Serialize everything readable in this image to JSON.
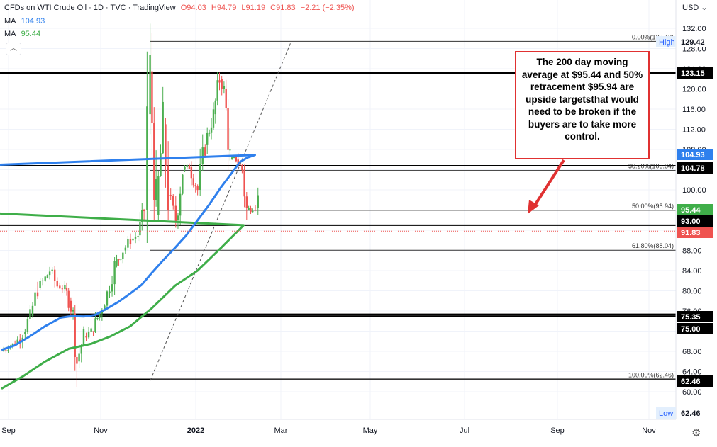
{
  "header": {
    "symbol_title": "CFDs on WTI Crude Oil · 1D · TVC · TradingView",
    "open": "O94.03",
    "high": "H94.79",
    "low": "L91.19",
    "close": "C91.83",
    "change": "−2.21 (−2.35%)",
    "ma1_label": "MA",
    "ma1_value": "104.93",
    "ma2_label": "MA",
    "ma2_value": "95.44",
    "currency": "USD"
  },
  "annotation": {
    "text": "The 200 day moving average at $95.44 and 50% retracement $95.94 are upside targetsthat would need to be broken if the buyers are to take more control."
  },
  "colors": {
    "up": "#26a69a",
    "up_fill": "#4caf50",
    "down": "#ef5350",
    "ma100": "#2f80ed",
    "ma200": "#3fae49",
    "annotation": "#e03131",
    "black_line": "#000000"
  },
  "chart_data": {
    "type": "line",
    "title": "CFDs on WTI Crude Oil · 1D · TVC · TradingView",
    "y_axis": {
      "ticks": [
        "132.00",
        "128.00",
        "124.00",
        "120.00",
        "116.00",
        "112.00",
        "108.00",
        "104.00",
        "100.00",
        "96.00",
        "92.00",
        "88.00",
        "84.00",
        "80.00",
        "76.00",
        "72.00",
        "68.00",
        "64.00",
        "60.00",
        "56.00"
      ],
      "ylim": [
        54,
        134
      ],
      "position": "right"
    },
    "x_axis": {
      "ticks": [
        "Sep",
        "Nov",
        "2022",
        "Mar",
        "May",
        "Jul",
        "Sep",
        "Nov"
      ]
    },
    "price_labels": [
      {
        "label": "High",
        "value": 129.42
      },
      {
        "label": "Low",
        "value": 62.46
      }
    ],
    "axis_price_tags": [
      {
        "text": "129.42",
        "kind": "high"
      },
      {
        "text": "123.15",
        "kind": "level"
      },
      {
        "text": "104.93",
        "kind": "ma100"
      },
      {
        "text": "104.78",
        "kind": "level"
      },
      {
        "text": "95.44",
        "kind": "ma200"
      },
      {
        "text": "93.00",
        "kind": "level"
      },
      {
        "text": "91.83",
        "kind": "last"
      },
      {
        "text": "75.35",
        "kind": "level"
      },
      {
        "text": "75.00",
        "kind": "level"
      },
      {
        "text": "62.46",
        "kind": "level"
      },
      {
        "text": "62.46",
        "kind": "low"
      }
    ],
    "horizontal_levels": [
      123.15,
      104.78,
      93.0,
      75.35,
      75.0,
      62.46
    ],
    "fibonacci": [
      {
        "label": "0.00%(129.42)",
        "value": 129.42
      },
      {
        "label": "38.20%(103.84)",
        "value": 103.84
      },
      {
        "label": "50.00%(95.94)",
        "value": 95.94
      },
      {
        "label": "61.80%(88.04)",
        "value": 88.04
      },
      {
        "label": "100.00%(62.46)",
        "value": 62.46
      }
    ],
    "last_price": 91.83,
    "series": [
      {
        "name": "MA 104.93",
        "kind": "ma100",
        "x": [
          "Aug-23",
          "Sep-10",
          "Sep-30",
          "Oct-20",
          "Nov-10",
          "Nov-25",
          "Dec-10",
          "Dec-25",
          "Jan-10",
          "Jan-25",
          "Feb-10",
          "Feb-25",
          "Mar-10",
          "Mar-25",
          "Apr-10",
          "Apr-25",
          "May-10",
          "May-25",
          "Jun-10",
          "Jun-25",
          "Jul-05",
          "Jul-15",
          "Jul-25",
          "Aug-05"
        ],
        "values": [
          68.3,
          69.2,
          71.0,
          73.0,
          74.7,
          75.0,
          74.9,
          75.2,
          76.5,
          77.8,
          79.5,
          81.2,
          83.5,
          86.0,
          88.5,
          91.0,
          94.0,
          97.0,
          100.5,
          103.5,
          105.5,
          106.4,
          106.9,
          104.9
        ]
      },
      {
        "name": "MA 95.44",
        "kind": "ma200",
        "x": [
          "Aug-23",
          "Sep-20",
          "Oct-20",
          "Nov-20",
          "Dec-20",
          "Jan-15",
          "Feb-10",
          "Mar-10",
          "Apr-10",
          "May-10",
          "Jun-10",
          "Jul-10",
          "Aug-05"
        ],
        "values": [
          60.6,
          63.0,
          66.0,
          68.5,
          69.5,
          71.0,
          73.0,
          76.5,
          81.0,
          84.0,
          88.5,
          93.0,
          95.44
        ]
      },
      {
        "name": "WTI close",
        "kind": "price",
        "x": [
          "Aug-23",
          "Sep-01",
          "Sep-10",
          "Sep-20",
          "Sep-30",
          "Oct-10",
          "Oct-20",
          "Oct-26",
          "Nov-05",
          "Nov-15",
          "Nov-20",
          "Nov-26",
          "Dec-01",
          "Dec-10",
          "Dec-20",
          "Dec-31",
          "Jan-10",
          "Jan-20",
          "Jan-31",
          "Feb-10",
          "Feb-20",
          "Feb-28",
          "Mar-04",
          "Mar-08",
          "Mar-16",
          "Mar-25",
          "Apr-01",
          "Apr-11",
          "Apr-20",
          "Apr-29",
          "May-10",
          "May-20",
          "May-31",
          "Jun-08",
          "Jun-14",
          "Jun-22",
          "Jun-30",
          "Jul-08",
          "Jul-14",
          "Jul-22",
          "Jul-29",
          "Aug-05"
        ],
        "values": [
          68.0,
          69.0,
          69.5,
          71.5,
          75.0,
          80.5,
          82.5,
          84.0,
          81.0,
          80.5,
          78.0,
          75.5,
          66.0,
          71.0,
          72.0,
          75.5,
          79.5,
          85.0,
          88.0,
          90.0,
          91.0,
          96.0,
          115.0,
          123.5,
          95.0,
          113.0,
          99.0,
          94.0,
          104.0,
          104.5,
          100.0,
          109.0,
          115.0,
          122.0,
          120.0,
          106.0,
          106.0,
          104.0,
          96.0,
          96.5,
          98.5,
          91.83
        ]
      }
    ],
    "legend": "top-left"
  }
}
